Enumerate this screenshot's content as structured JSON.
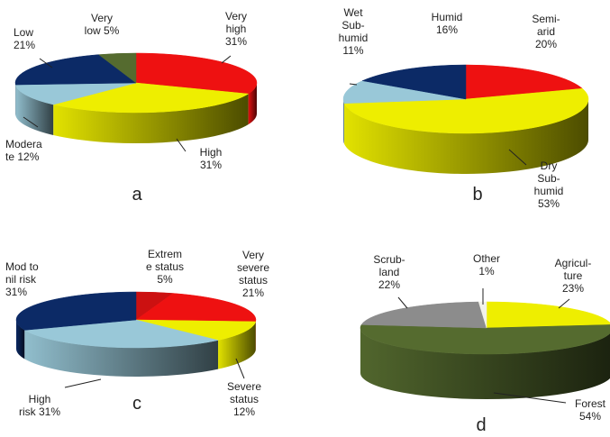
{
  "chart_data": [
    {
      "type": "pie",
      "panel_label": "a",
      "slices": [
        {
          "label": "Very high",
          "label_lines": [
            "Very",
            "high",
            "31%"
          ],
          "value": 31,
          "color": "#ee1111"
        },
        {
          "label": "High",
          "label_lines": [
            "High",
            "31%"
          ],
          "value": 31,
          "color": "#eeee00"
        },
        {
          "label": "Moderate",
          "label_lines": [
            "Modera",
            "te 12%"
          ],
          "value": 12,
          "color": "#99c8d8"
        },
        {
          "label": "Low",
          "label_lines": [
            "Low",
            "21%"
          ],
          "value": 21,
          "color": "#0c2a66"
        },
        {
          "label": "Very low",
          "label_lines": [
            "Very",
            "low 5%"
          ],
          "value": 5,
          "color": "#556b2f"
        }
      ]
    },
    {
      "type": "pie",
      "panel_label": "b",
      "slices": [
        {
          "label": "Semi-arid",
          "label_lines": [
            "Semi-",
            "arid",
            "20%"
          ],
          "value": 20,
          "color": "#ee1111"
        },
        {
          "label": "Dry Sub-humid",
          "label_lines": [
            "Dry",
            "Sub-",
            "humid",
            "53%"
          ],
          "value": 53,
          "color": "#eeee00"
        },
        {
          "label": "Wet Sub-humid",
          "label_lines": [
            "Wet",
            "Sub-",
            "humid",
            "11%"
          ],
          "value": 11,
          "color": "#99c8d8"
        },
        {
          "label": "Humid",
          "label_lines": [
            "Humid",
            "16%"
          ],
          "value": 16,
          "color": "#0c2a66"
        }
      ]
    },
    {
      "type": "pie",
      "panel_label": "c",
      "slices": [
        {
          "label": "Extreme status",
          "label_lines": [
            "Extrem",
            "e status",
            "5%"
          ],
          "value": 5,
          "color": "#cc1111"
        },
        {
          "label": "Very severe status",
          "label_lines": [
            "Very",
            "severe",
            "status",
            "21%"
          ],
          "value": 21,
          "color": "#ee1111"
        },
        {
          "label": "Severe status",
          "label_lines": [
            "Severe",
            "status",
            "12%"
          ],
          "value": 12,
          "color": "#eeee00"
        },
        {
          "label": "High risk",
          "label_lines": [
            "High",
            "risk 31%"
          ],
          "value": 31,
          "color": "#99c8d8"
        },
        {
          "label": "Mod to nil risk",
          "label_lines": [
            "Mod to",
            "nil risk",
            "31%"
          ],
          "value": 31,
          "color": "#0c2a66"
        }
      ]
    },
    {
      "type": "pie",
      "panel_label": "d",
      "slices": [
        {
          "label": "Agriculture",
          "label_lines": [
            "Agricul-",
            "ture",
            "23%"
          ],
          "value": 23,
          "color": "#eeee00"
        },
        {
          "label": "Forest",
          "label_lines": [
            "Forest",
            "54%"
          ],
          "value": 54,
          "color": "#556b2f"
        },
        {
          "label": "Scrub-land",
          "label_lines": [
            "Scrub-",
            "land",
            "22%"
          ],
          "value": 22,
          "color": "#8c8c8c"
        },
        {
          "label": "Other",
          "label_lines": [
            "Other",
            "1%"
          ],
          "value": 1,
          "color": "#f2f2ea"
        }
      ]
    }
  ]
}
